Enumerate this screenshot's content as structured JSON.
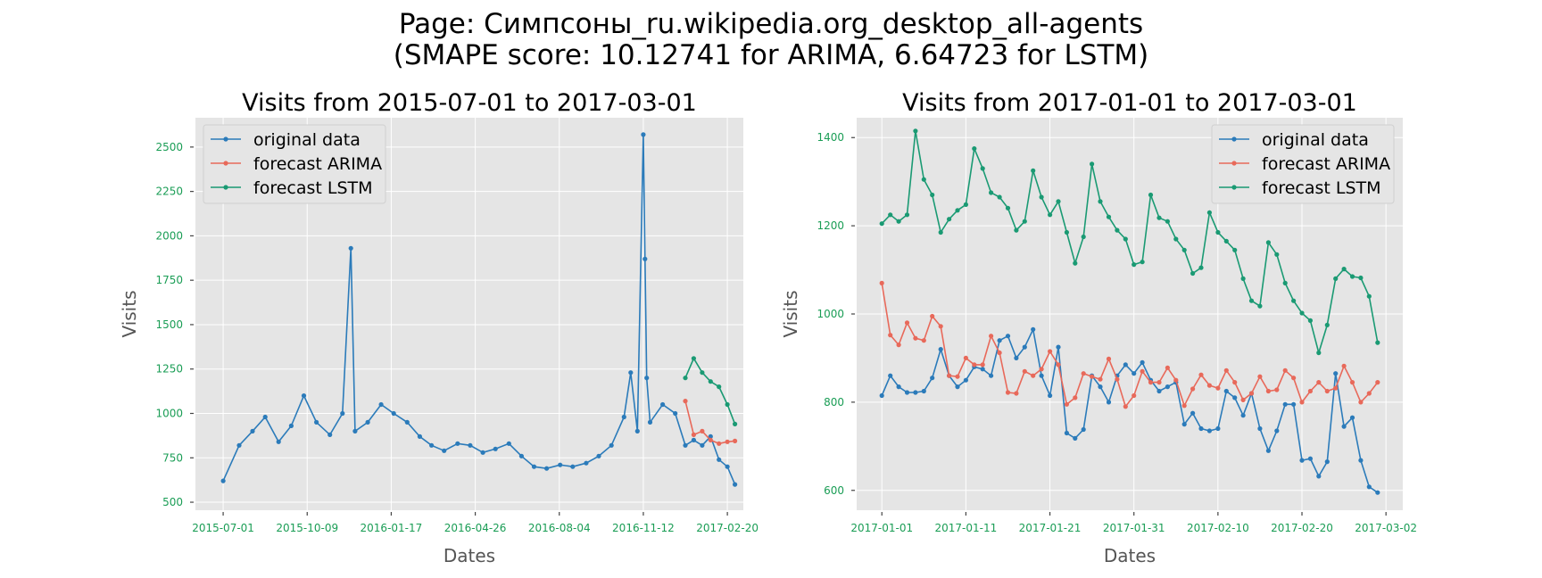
{
  "figure": {
    "title_line1": "Page: Симпсоны_ru.wikipedia.org_desktop_all-agents",
    "title_line2": "(SMAPE score: 10.12741 for ARIMA, 6.64723 for LSTM)"
  },
  "colors": {
    "original": "#2b7bba",
    "arima": "#e8695a",
    "lstm": "#1a9a73",
    "tick_text": "#1a9d55",
    "panel_bg": "#e5e5e5"
  },
  "chart_data": [
    {
      "type": "line",
      "title": "Visits from 2015-07-01 to 2017-03-01",
      "xlabel": "Dates",
      "ylabel": "Visits",
      "grid": true,
      "legend_position": "top-left",
      "x_type": "date",
      "xlim": [
        "2015-05-29",
        "2017-03-11"
      ],
      "ylim": [
        455,
        2665
      ],
      "xticks": [
        "2015-07-01",
        "2015-10-09",
        "2016-01-17",
        "2016-04-26",
        "2016-08-04",
        "2016-11-12",
        "2017-02-20"
      ],
      "yticks": [
        500,
        750,
        1000,
        1250,
        1500,
        1750,
        2000,
        2250,
        2500
      ],
      "series": [
        {
          "name": "original data",
          "x": [
            "2015-07-01",
            "2015-07-20",
            "2015-08-05",
            "2015-08-20",
            "2015-09-05",
            "2015-09-20",
            "2015-10-05",
            "2015-10-20",
            "2015-11-05",
            "2015-11-20",
            "2015-11-30",
            "2015-12-05",
            "2015-12-20",
            "2016-01-05",
            "2016-01-20",
            "2016-02-05",
            "2016-02-20",
            "2016-03-05",
            "2016-03-20",
            "2016-04-05",
            "2016-04-20",
            "2016-05-05",
            "2016-05-20",
            "2016-06-05",
            "2016-06-20",
            "2016-07-05",
            "2016-07-20",
            "2016-08-05",
            "2016-08-20",
            "2016-09-05",
            "2016-09-20",
            "2016-10-05",
            "2016-10-20",
            "2016-10-28",
            "2016-11-05",
            "2016-11-12",
            "2016-11-14",
            "2016-11-16",
            "2016-11-20",
            "2016-12-05",
            "2016-12-20",
            "2017-01-01",
            "2017-01-11",
            "2017-01-21",
            "2017-01-31",
            "2017-02-10",
            "2017-02-20",
            "2017-03-01"
          ],
          "values": [
            620,
            820,
            900,
            980,
            840,
            930,
            1100,
            950,
            880,
            1000,
            1930,
            900,
            950,
            1050,
            1000,
            950,
            870,
            820,
            790,
            830,
            820,
            780,
            800,
            830,
            760,
            700,
            690,
            710,
            700,
            720,
            760,
            820,
            980,
            1230,
            900,
            2570,
            1870,
            1200,
            950,
            1050,
            1000,
            820,
            850,
            820,
            870,
            740,
            700,
            600
          ]
        },
        {
          "name": "forecast ARIMA",
          "x": [
            "2017-01-01",
            "2017-01-11",
            "2017-01-21",
            "2017-01-31",
            "2017-02-10",
            "2017-02-20",
            "2017-03-01"
          ],
          "values": [
            1070,
            880,
            900,
            850,
            830,
            840,
            845
          ]
        },
        {
          "name": "forecast LSTM",
          "x": [
            "2017-01-01",
            "2017-01-11",
            "2017-01-21",
            "2017-01-31",
            "2017-02-10",
            "2017-02-20",
            "2017-03-01"
          ],
          "values": [
            1200,
            1310,
            1230,
            1180,
            1150,
            1050,
            940
          ]
        }
      ]
    },
    {
      "type": "line",
      "title": "Visits from 2017-01-01 to 2017-03-01",
      "xlabel": "Dates",
      "ylabel": "Visits",
      "grid": true,
      "legend_position": "top-right",
      "x_type": "date",
      "xlim": [
        "2016-12-29",
        "2017-03-04"
      ],
      "ylim": [
        555,
        1445
      ],
      "xticks": [
        "2017-01-01",
        "2017-01-11",
        "2017-01-21",
        "2017-01-31",
        "2017-02-10",
        "2017-02-20",
        "2017-03-02"
      ],
      "yticks": [
        600,
        800,
        1000,
        1200,
        1400
      ],
      "series": [
        {
          "name": "original data",
          "x": [
            "2017-01-01",
            "2017-01-02",
            "2017-01-03",
            "2017-01-04",
            "2017-01-05",
            "2017-01-06",
            "2017-01-07",
            "2017-01-08",
            "2017-01-09",
            "2017-01-10",
            "2017-01-11",
            "2017-01-12",
            "2017-01-13",
            "2017-01-14",
            "2017-01-15",
            "2017-01-16",
            "2017-01-17",
            "2017-01-18",
            "2017-01-19",
            "2017-01-20",
            "2017-01-21",
            "2017-01-22",
            "2017-01-23",
            "2017-01-24",
            "2017-01-25",
            "2017-01-26",
            "2017-01-27",
            "2017-01-28",
            "2017-01-29",
            "2017-01-30",
            "2017-01-31",
            "2017-02-01",
            "2017-02-02",
            "2017-02-03",
            "2017-02-04",
            "2017-02-05",
            "2017-02-06",
            "2017-02-07",
            "2017-02-08",
            "2017-02-09",
            "2017-02-10",
            "2017-02-11",
            "2017-02-12",
            "2017-02-13",
            "2017-02-14",
            "2017-02-15",
            "2017-02-16",
            "2017-02-17",
            "2017-02-18",
            "2017-02-19",
            "2017-02-20",
            "2017-02-21",
            "2017-02-22",
            "2017-02-23",
            "2017-02-24",
            "2017-02-25",
            "2017-02-26",
            "2017-02-27",
            "2017-02-28",
            "2017-03-01"
          ],
          "values": [
            815,
            860,
            835,
            822,
            822,
            825,
            855,
            920,
            860,
            835,
            850,
            880,
            875,
            860,
            940,
            950,
            900,
            925,
            965,
            860,
            815,
            925,
            730,
            718,
            738,
            860,
            835,
            800,
            860,
            885,
            865,
            890,
            850,
            825,
            835,
            845,
            750,
            775,
            740,
            735,
            740,
            825,
            810,
            770,
            820,
            740,
            690,
            735,
            795,
            795,
            668,
            672,
            632,
            665,
            865,
            745,
            765,
            668,
            608,
            595
          ]
        },
        {
          "name": "forecast ARIMA",
          "x": [
            "2017-01-01",
            "2017-01-02",
            "2017-01-03",
            "2017-01-04",
            "2017-01-05",
            "2017-01-06",
            "2017-01-07",
            "2017-01-08",
            "2017-01-09",
            "2017-01-10",
            "2017-01-11",
            "2017-01-12",
            "2017-01-13",
            "2017-01-14",
            "2017-01-15",
            "2017-01-16",
            "2017-01-17",
            "2017-01-18",
            "2017-01-19",
            "2017-01-20",
            "2017-01-21",
            "2017-01-22",
            "2017-01-23",
            "2017-01-24",
            "2017-01-25",
            "2017-01-26",
            "2017-01-27",
            "2017-01-28",
            "2017-01-29",
            "2017-01-30",
            "2017-01-31",
            "2017-02-01",
            "2017-02-02",
            "2017-02-03",
            "2017-02-04",
            "2017-02-05",
            "2017-02-06",
            "2017-02-07",
            "2017-02-08",
            "2017-02-09",
            "2017-02-10",
            "2017-02-11",
            "2017-02-12",
            "2017-02-13",
            "2017-02-14",
            "2017-02-15",
            "2017-02-16",
            "2017-02-17",
            "2017-02-18",
            "2017-02-19",
            "2017-02-20",
            "2017-02-21",
            "2017-02-22",
            "2017-02-23",
            "2017-02-24",
            "2017-02-25",
            "2017-02-26",
            "2017-02-27",
            "2017-02-28",
            "2017-03-01"
          ],
          "values": [
            1070,
            952,
            930,
            980,
            945,
            940,
            995,
            972,
            860,
            858,
            900,
            885,
            885,
            950,
            912,
            822,
            820,
            870,
            860,
            875,
            915,
            885,
            795,
            810,
            865,
            858,
            852,
            898,
            852,
            790,
            815,
            870,
            845,
            845,
            878,
            850,
            792,
            830,
            862,
            838,
            832,
            872,
            845,
            805,
            820,
            858,
            825,
            828,
            872,
            855,
            800,
            825,
            845,
            825,
            832,
            882,
            845,
            800,
            820,
            845
          ]
        },
        {
          "name": "forecast LSTM",
          "x": [
            "2017-01-01",
            "2017-01-02",
            "2017-01-03",
            "2017-01-04",
            "2017-01-05",
            "2017-01-06",
            "2017-01-07",
            "2017-01-08",
            "2017-01-09",
            "2017-01-10",
            "2017-01-11",
            "2017-01-12",
            "2017-01-13",
            "2017-01-14",
            "2017-01-15",
            "2017-01-16",
            "2017-01-17",
            "2017-01-18",
            "2017-01-19",
            "2017-01-20",
            "2017-01-21",
            "2017-01-22",
            "2017-01-23",
            "2017-01-24",
            "2017-01-25",
            "2017-01-26",
            "2017-01-27",
            "2017-01-28",
            "2017-01-29",
            "2017-01-30",
            "2017-01-31",
            "2017-02-01",
            "2017-02-02",
            "2017-02-03",
            "2017-02-04",
            "2017-02-05",
            "2017-02-06",
            "2017-02-07",
            "2017-02-08",
            "2017-02-09",
            "2017-02-10",
            "2017-02-11",
            "2017-02-12",
            "2017-02-13",
            "2017-02-14",
            "2017-02-15",
            "2017-02-16",
            "2017-02-17",
            "2017-02-18",
            "2017-02-19",
            "2017-02-20",
            "2017-02-21",
            "2017-02-22",
            "2017-02-23",
            "2017-02-24",
            "2017-02-25",
            "2017-02-26",
            "2017-02-27",
            "2017-02-28",
            "2017-03-01"
          ],
          "values": [
            1205,
            1225,
            1210,
            1225,
            1415,
            1305,
            1270,
            1185,
            1215,
            1235,
            1248,
            1375,
            1330,
            1275,
            1265,
            1240,
            1190,
            1210,
            1325,
            1265,
            1225,
            1255,
            1185,
            1115,
            1175,
            1340,
            1255,
            1220,
            1190,
            1170,
            1112,
            1118,
            1270,
            1218,
            1210,
            1170,
            1145,
            1092,
            1105,
            1230,
            1185,
            1165,
            1145,
            1080,
            1030,
            1018,
            1162,
            1135,
            1070,
            1030,
            1002,
            985,
            912,
            975,
            1080,
            1102,
            1085,
            1082,
            1040,
            935
          ]
        }
      ]
    }
  ]
}
